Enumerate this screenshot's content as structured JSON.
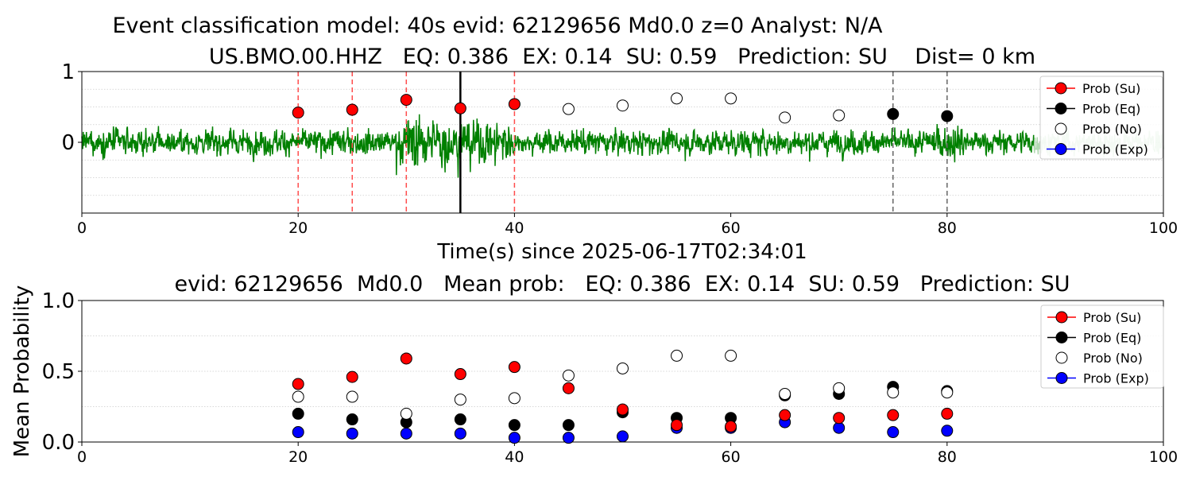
{
  "figure": {
    "suptitle": "Event classification model: 40s evid: 62129656 Md0.0 z=0 Analyst: N/A"
  },
  "top_panel": {
    "title": "US.BMO.00.HHZ   EQ: 0.386  EX: 0.14  SU: 0.59   Prediction: SU    Dist= 0 km",
    "xlabel": "Time(s) since 2025-06-17T02:34:01"
  },
  "bottom_panel": {
    "title": "evid: 62129656  Md0.0   Mean prob:   EQ: 0.386  EX: 0.14  SU: 0.59   Prediction: SU",
    "ylabel": "Mean Probability"
  },
  "colors": {
    "waveform": "#008000",
    "su": "#ff0000",
    "eq": "#000000",
    "no": "#ffffff",
    "exp": "#0000ff",
    "red_lines": "#ff4d4d",
    "gray_lines": "#666666",
    "pick_line": "#000000"
  },
  "chart_data": [
    {
      "type": "line",
      "panel": "waveform",
      "title": "US.BMO.00.HHZ   EQ: 0.386  EX: 0.14  SU: 0.59   Prediction: SU    Dist= 0 km",
      "xlabel": "Time(s) since 2025-06-17T02:34:01",
      "ylabel": "",
      "xlim": [
        0,
        100
      ],
      "ylim": [
        -1,
        1
      ],
      "x_ticks": [
        0,
        20,
        40,
        60,
        80,
        100
      ],
      "y_ticks": [
        0,
        1
      ],
      "grid": "horizontal dotted",
      "legend_position": "top-right",
      "vertical_lines": {
        "red_dashed": [
          20,
          25,
          30,
          40
        ],
        "black_solid": [
          35
        ],
        "gray_dashed": [
          75,
          80
        ]
      },
      "waveform": {
        "name": "",
        "x_range": [
          0,
          100
        ],
        "amplitude_approx": 0.45,
        "highlight_end_shaded_from": 88
      },
      "markers": [
        {
          "x": 20,
          "y": 0.42,
          "class": "Su"
        },
        {
          "x": 25,
          "y": 0.46,
          "class": "Su"
        },
        {
          "x": 30,
          "y": 0.6,
          "class": "Su"
        },
        {
          "x": 35,
          "y": 0.48,
          "class": "Su"
        },
        {
          "x": 40,
          "y": 0.54,
          "class": "Su"
        },
        {
          "x": 45,
          "y": 0.47,
          "class": "No"
        },
        {
          "x": 50,
          "y": 0.52,
          "class": "No"
        },
        {
          "x": 55,
          "y": 0.62,
          "class": "No"
        },
        {
          "x": 60,
          "y": 0.62,
          "class": "No"
        },
        {
          "x": 65,
          "y": 0.35,
          "class": "No"
        },
        {
          "x": 70,
          "y": 0.38,
          "class": "No"
        },
        {
          "x": 75,
          "y": 0.4,
          "class": "Eq"
        },
        {
          "x": 80,
          "y": 0.37,
          "class": "Eq"
        }
      ],
      "legend": [
        "Prob (Su)",
        "Prob (Eq)",
        "Prob (No)",
        "Prob (Exp)"
      ]
    },
    {
      "type": "scatter",
      "panel": "mean-probability",
      "title": "evid: 62129656  Md0.0   Mean prob:   EQ: 0.386  EX: 0.14  SU: 0.59   Prediction: SU",
      "xlabel": "",
      "ylabel": "Mean Probability",
      "xlim": [
        0,
        100
      ],
      "ylim": [
        0,
        1
      ],
      "x_ticks": [
        0,
        20,
        40,
        60,
        80,
        100
      ],
      "y_ticks": [
        0.0,
        0.5,
        1.0
      ],
      "grid": "horizontal dotted",
      "legend_position": "top-right",
      "x": [
        20,
        25,
        30,
        35,
        40,
        45,
        50,
        55,
        60,
        65,
        70,
        75,
        80
      ],
      "series": [
        {
          "name": "Prob (Su)",
          "key": "su",
          "values": [
            0.41,
            0.46,
            0.59,
            0.48,
            0.53,
            0.38,
            0.23,
            0.12,
            0.11,
            0.19,
            0.17,
            0.19,
            0.2
          ]
        },
        {
          "name": "Prob (Eq)",
          "key": "eq",
          "values": [
            0.2,
            0.16,
            0.14,
            0.16,
            0.12,
            0.12,
            0.21,
            0.17,
            0.17,
            0.33,
            0.34,
            0.39,
            0.36
          ]
        },
        {
          "name": "Prob (No)",
          "key": "no",
          "values": [
            0.32,
            0.32,
            0.2,
            0.3,
            0.31,
            0.47,
            0.52,
            0.61,
            0.61,
            0.34,
            0.38,
            0.35,
            0.35
          ]
        },
        {
          "name": "Prob (Exp)",
          "key": "exp",
          "values": [
            0.07,
            0.06,
            0.06,
            0.06,
            0.03,
            0.03,
            0.04,
            0.1,
            0.1,
            0.14,
            0.1,
            0.07,
            0.08
          ]
        }
      ],
      "legend": [
        "Prob (Su)",
        "Prob (Eq)",
        "Prob (No)",
        "Prob (Exp)"
      ]
    }
  ]
}
